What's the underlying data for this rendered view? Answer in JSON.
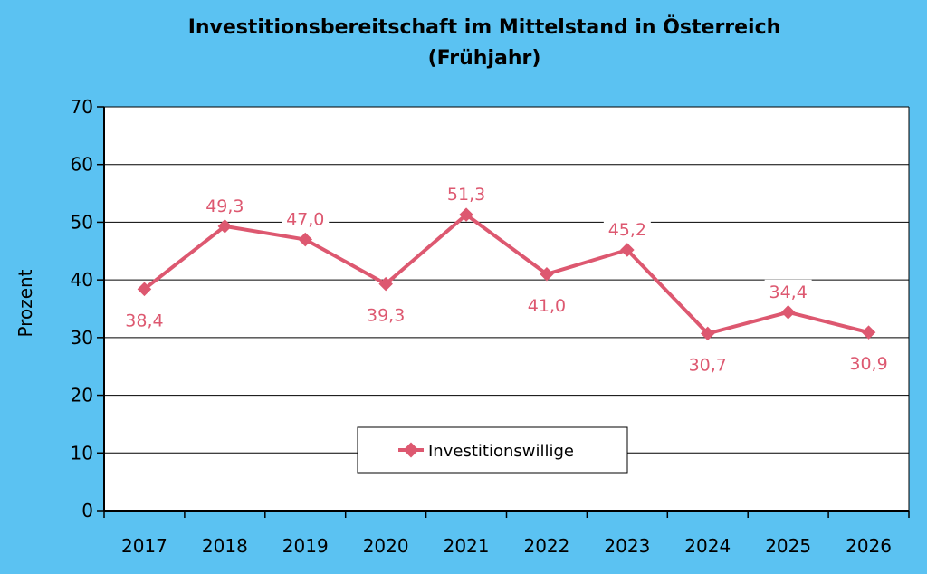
{
  "chart_data": {
    "type": "line",
    "title_line1": "Investitionsbereitschaft im Mittelstand in Österreich",
    "title_line2": "(Frühjahr)",
    "xlabel": "",
    "ylabel": "Prozent",
    "ylim": [
      0,
      70
    ],
    "y_ticks": [
      0,
      10,
      20,
      30,
      40,
      50,
      60,
      70
    ],
    "grid": "horizontal",
    "legend_position": "bottom-center",
    "categories": [
      "2017",
      "2018",
      "2019",
      "2020",
      "2021",
      "2022",
      "2023",
      "2024",
      "2025",
      "2026"
    ],
    "series": [
      {
        "name": "Investitionswillige",
        "color": "#dd5870",
        "values": [
          38.4,
          49.3,
          47.0,
          39.3,
          51.3,
          41.0,
          45.2,
          30.7,
          34.4,
          30.9
        ],
        "labels": [
          "38,4",
          "49,3",
          "47,0",
          "39,3",
          "51,3",
          "41,0",
          "45,2",
          "30,7",
          "34,4",
          "30,9"
        ],
        "label_positions": [
          "below",
          "above",
          "above",
          "below",
          "above",
          "below",
          "above",
          "below",
          "above",
          "below"
        ]
      }
    ]
  }
}
